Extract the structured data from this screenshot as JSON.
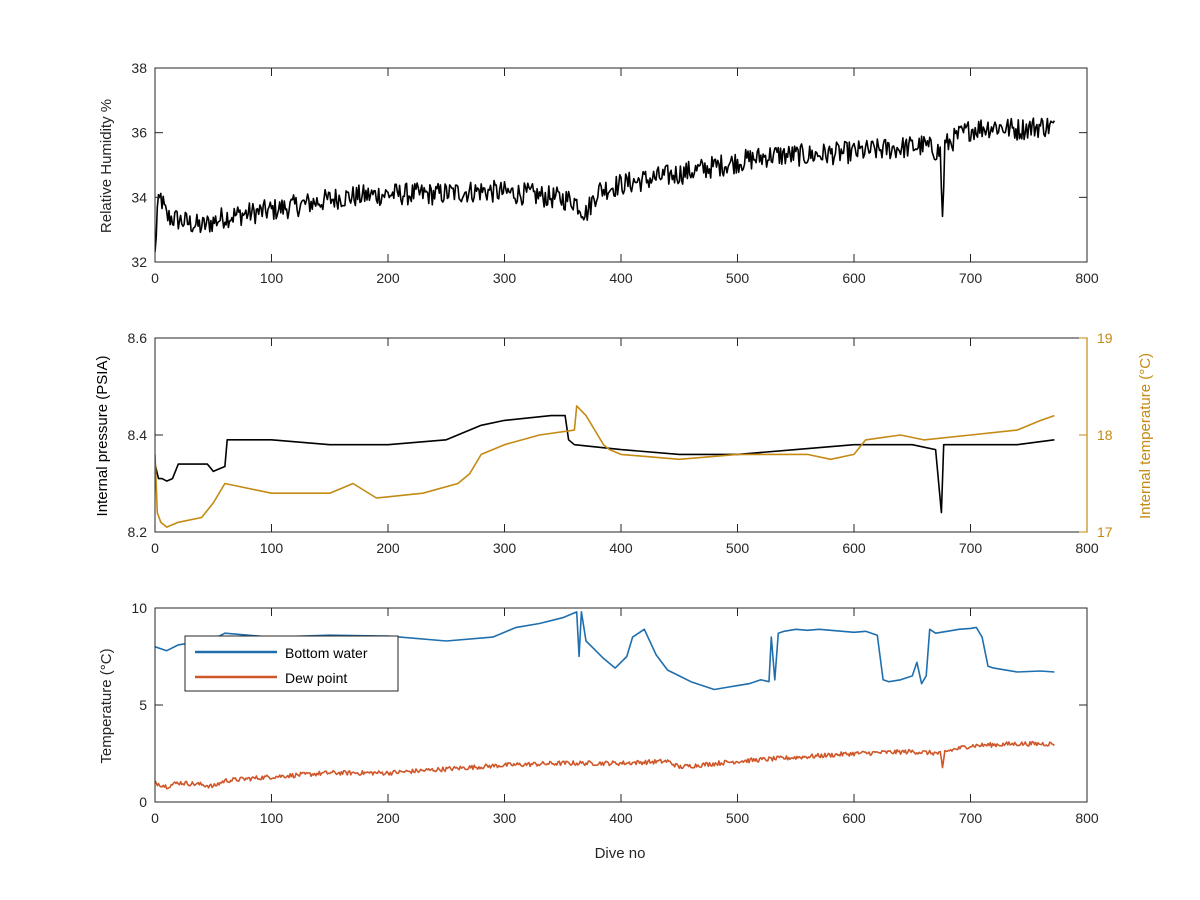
{
  "colors": {
    "axis": "#262626",
    "humidity": "#000000",
    "pressure": "#000000",
    "temperature_internal": "#C48A13",
    "bottom_water": "#1F6FAE",
    "dew_point": "#D0572A"
  },
  "chart_data": [
    {
      "type": "line",
      "xlabel": "",
      "ylabel": "Relative Humidity %",
      "xlim": [
        0,
        800
      ],
      "ylim": [
        32,
        38
      ],
      "xticks": [
        "0",
        "100",
        "200",
        "300",
        "400",
        "500",
        "600",
        "700",
        "800"
      ],
      "yticks": [
        "32",
        "34",
        "36",
        "38"
      ],
      "grid": false,
      "series": [
        {
          "color": "#000000",
          "noise": 0.35,
          "x": [
            0,
            2,
            5,
            10,
            20,
            40,
            60,
            80,
            100,
            130,
            160,
            200,
            240,
            280,
            320,
            360,
            370,
            380,
            400,
            430,
            460,
            500,
            530,
            560,
            600,
            630,
            660,
            674,
            676,
            678,
            690,
            700,
            720,
            740,
            760,
            772
          ],
          "y": [
            32.2,
            33.6,
            34.0,
            33.4,
            33.3,
            33.1,
            33.4,
            33.5,
            33.6,
            33.8,
            34.0,
            34.1,
            34.1,
            34.2,
            34.1,
            33.9,
            33.5,
            34.2,
            34.4,
            34.6,
            34.8,
            35.1,
            35.3,
            35.3,
            35.4,
            35.5,
            35.6,
            35.4,
            33.3,
            35.6,
            35.9,
            36.1,
            36.2,
            36.1,
            36.2,
            36.2
          ]
        }
      ]
    },
    {
      "type": "line",
      "xlabel": "",
      "ylabel": "Internal pressure (PSIA)",
      "y2label": "Internal temperature (°C)",
      "xlim": [
        0,
        800
      ],
      "ylim": [
        8.2,
        8.6
      ],
      "y2lim": [
        17,
        19
      ],
      "xticks": [
        "0",
        "100",
        "200",
        "300",
        "400",
        "500",
        "600",
        "700",
        "800"
      ],
      "yticks": [
        "8.2",
        "8.4",
        "8.6"
      ],
      "y2ticks": [
        "17",
        "18",
        "19"
      ],
      "grid": false,
      "series": [
        {
          "color": "#000000",
          "axis": "left",
          "x": [
            0,
            3,
            6,
            10,
            15,
            20,
            45,
            50,
            55,
            60,
            62,
            100,
            150,
            200,
            250,
            280,
            300,
            340,
            352,
            355,
            360,
            400,
            450,
            500,
            550,
            600,
            650,
            670,
            675,
            677,
            680,
            700,
            740,
            772
          ],
          "y": [
            8.34,
            8.31,
            8.31,
            8.305,
            8.31,
            8.34,
            8.34,
            8.325,
            8.33,
            8.335,
            8.39,
            8.39,
            8.38,
            8.38,
            8.39,
            8.42,
            8.43,
            8.44,
            8.44,
            8.39,
            8.38,
            8.37,
            8.36,
            8.36,
            8.37,
            8.38,
            8.38,
            8.37,
            8.24,
            8.38,
            8.38,
            8.38,
            8.38,
            8.39
          ]
        },
        {
          "color": "#C48A13",
          "axis": "right",
          "x": [
            0,
            2,
            5,
            10,
            20,
            40,
            50,
            60,
            80,
            100,
            150,
            170,
            190,
            230,
            260,
            270,
            280,
            300,
            330,
            360,
            362,
            370,
            380,
            385,
            390,
            400,
            450,
            500,
            520,
            560,
            580,
            600,
            610,
            640,
            660,
            700,
            740,
            760,
            772
          ],
          "y": [
            17.8,
            17.2,
            17.1,
            17.05,
            17.1,
            17.15,
            17.3,
            17.5,
            17.45,
            17.4,
            17.4,
            17.5,
            17.35,
            17.4,
            17.5,
            17.6,
            17.8,
            17.9,
            18.0,
            18.05,
            18.3,
            18.2,
            18.0,
            17.9,
            17.85,
            17.8,
            17.75,
            17.8,
            17.8,
            17.8,
            17.75,
            17.8,
            17.95,
            18.0,
            17.95,
            18.0,
            18.05,
            18.15,
            18.2
          ]
        }
      ]
    },
    {
      "type": "line",
      "xlabel": "Dive no",
      "ylabel": "Temperature (°C)",
      "xlim": [
        0,
        800
      ],
      "ylim": [
        0,
        10
      ],
      "xticks": [
        "0",
        "100",
        "200",
        "300",
        "400",
        "500",
        "600",
        "700",
        "800"
      ],
      "yticks": [
        "0",
        "5",
        "10"
      ],
      "grid": false,
      "legend_position": "top-left",
      "series": [
        {
          "name": "Bottom water",
          "color": "#1F6FAE",
          "x": [
            0,
            10,
            20,
            30,
            50,
            60,
            80,
            100,
            150,
            200,
            250,
            290,
            310,
            330,
            350,
            362,
            364,
            366,
            370,
            375,
            385,
            395,
            405,
            410,
            420,
            430,
            440,
            450,
            460,
            470,
            480,
            490,
            500,
            510,
            520,
            527,
            529,
            532,
            535,
            540,
            550,
            560,
            570,
            580,
            590,
            600,
            610,
            620,
            625,
            630,
            640,
            650,
            654,
            658,
            662,
            665,
            670,
            680,
            690,
            700,
            705,
            710,
            715,
            720,
            740,
            760,
            772
          ],
          "y": [
            8.0,
            7.8,
            8.1,
            8.2,
            8.4,
            8.7,
            8.6,
            8.5,
            8.6,
            8.55,
            8.3,
            8.5,
            9.0,
            9.2,
            9.5,
            9.8,
            7.5,
            9.8,
            8.3,
            8.0,
            7.4,
            6.9,
            7.5,
            8.5,
            8.9,
            7.6,
            6.8,
            6.5,
            6.2,
            6.0,
            5.8,
            5.9,
            6.0,
            6.1,
            6.3,
            6.2,
            8.5,
            6.3,
            8.7,
            8.8,
            8.9,
            8.85,
            8.9,
            8.85,
            8.8,
            8.75,
            8.8,
            8.6,
            6.3,
            6.2,
            6.3,
            6.5,
            7.2,
            6.1,
            6.5,
            8.9,
            8.7,
            8.8,
            8.9,
            8.95,
            9.0,
            8.5,
            7.0,
            6.9,
            6.7,
            6.75,
            6.7
          ]
        },
        {
          "name": "Dew point",
          "color": "#D0572A",
          "noise": 0.12,
          "x": [
            0,
            10,
            20,
            40,
            50,
            60,
            100,
            150,
            200,
            250,
            300,
            350,
            400,
            440,
            450,
            500,
            550,
            600,
            650,
            674,
            676,
            678,
            700,
            740,
            772
          ],
          "y": [
            1.0,
            0.8,
            1.0,
            0.9,
            0.8,
            1.1,
            1.3,
            1.5,
            1.5,
            1.7,
            1.9,
            2.0,
            2.0,
            2.1,
            1.8,
            2.1,
            2.3,
            2.5,
            2.6,
            2.5,
            1.7,
            2.6,
            2.9,
            3.0,
            3.0
          ]
        }
      ]
    }
  ]
}
